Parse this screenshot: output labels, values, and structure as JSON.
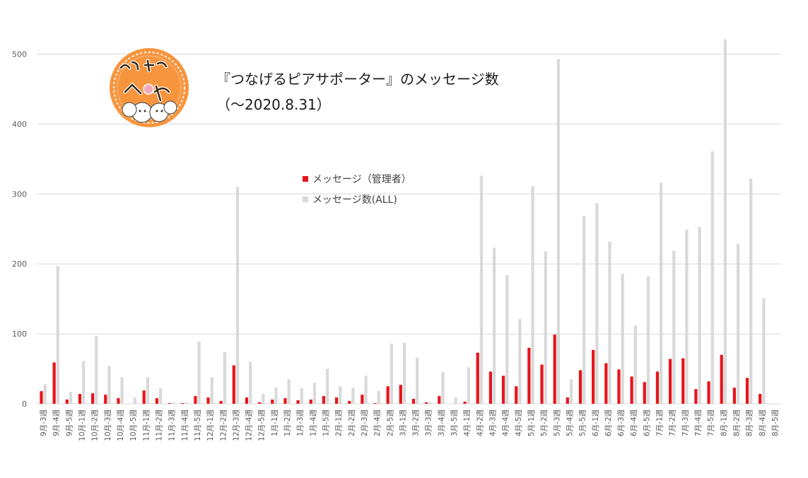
{
  "chart_data": {
    "type": "bar",
    "title_line1": "『つなげるピアサポーター』のメッセージ数",
    "title_line2": "（～2020.8.31）",
    "ylim": [
      0,
      520
    ],
    "yticks": [
      0,
      100,
      200,
      300,
      400,
      500
    ],
    "grid": true,
    "legend_position": "center",
    "categories": [
      "9月-3週",
      "9月-4週",
      "9月-5週",
      "10月-1週",
      "10月-2週",
      "10月-3週",
      "10月-4週",
      "10月-5週",
      "11月-1週",
      "11月-2週",
      "11月-3週",
      "11月-4週",
      "11月-5週",
      "12月-1週",
      "12月-2週",
      "12月-3週",
      "12月-4週",
      "12月-5週",
      "1月-1週",
      "1月-2週",
      "1月-3週",
      "1月-4週",
      "1月-5週",
      "2月-1週",
      "2月-2週",
      "2月-3週",
      "2月-4週",
      "2月-5週",
      "3月-1週",
      "3月-2週",
      "3月-3週",
      "3月-4週",
      "3月-5週",
      "4月-1週",
      "4月-2週",
      "4月-3週",
      "4月-4週",
      "4月-5週",
      "5月-1週",
      "5月-2週",
      "5月-3週",
      "5月-4週",
      "5月-5週",
      "6月-1週",
      "6月-2週",
      "6月-3週",
      "6月-4週",
      "6月-5週",
      "7月-1週",
      "7月-2週",
      "7月-3週",
      "7月-4週",
      "7月-5週",
      "8月-1週",
      "8月-2週",
      "8月-3週",
      "8月-4週",
      "8月-5週"
    ],
    "series": [
      {
        "name": "メッセージ（管理者）",
        "color": "#e8141b",
        "values": [
          18,
          59,
          6,
          14,
          15,
          13,
          8,
          0,
          19,
          8,
          1,
          1,
          11,
          9,
          4,
          55,
          9,
          2,
          6,
          8,
          5,
          6,
          11,
          9,
          4,
          13,
          1,
          25,
          27,
          7,
          2,
          11,
          0,
          3,
          73,
          46,
          40,
          25,
          80,
          56,
          99,
          9,
          48,
          77,
          58,
          49,
          39,
          31,
          46,
          64,
          65,
          21,
          32,
          70,
          23,
          37,
          14,
          0
        ]
      },
      {
        "name": "メッセージ数(ALL)",
        "color": "#d9d9d9",
        "values": [
          28,
          197,
          17,
          61,
          97,
          54,
          38,
          9,
          38,
          22,
          2,
          2,
          89,
          38,
          74,
          310,
          60,
          14,
          23,
          35,
          22,
          30,
          50,
          25,
          23,
          40,
          18,
          86,
          87,
          66,
          2,
          45,
          9,
          52,
          326,
          223,
          184,
          121,
          311,
          218,
          493,
          35,
          268,
          287,
          232,
          186,
          112,
          182,
          316,
          219,
          249,
          253,
          361,
          521,
          229,
          322,
          151,
          0
        ]
      }
    ]
  }
}
